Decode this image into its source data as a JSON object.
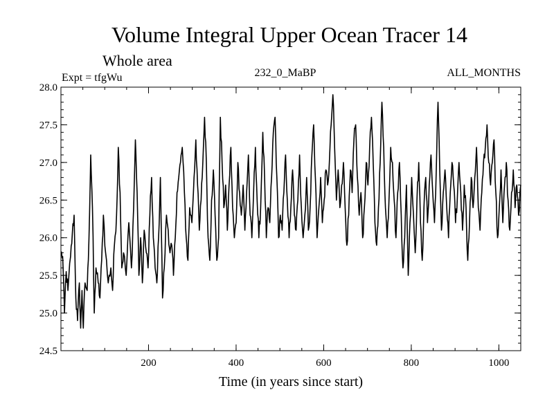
{
  "chart_data": {
    "type": "line",
    "title": "Volume Integral Upper Ocean Tracer 14",
    "subtitle": "Whole area",
    "annotations": {
      "left": "Expt = tfgWu",
      "center": "232_0_MaBP",
      "right": "ALL_MONTHS"
    },
    "xlabel": "Time (in years since start)",
    "ylabel": "",
    "xlim": [
      0,
      1050
    ],
    "ylim": [
      24.5,
      28.0
    ],
    "xticks": [
      200,
      400,
      600,
      800,
      1000
    ],
    "yticks": [
      24.5,
      25.0,
      25.5,
      26.0,
      26.5,
      27.0,
      27.5,
      28.0
    ],
    "ytick_labels": [
      "24.5",
      "25.0",
      "25.5",
      "26.0",
      "26.5",
      "27.0",
      "27.5",
      "28.0"
    ],
    "series": [
      {
        "name": "Tracer 14",
        "color": "#000000",
        "keypoints": [
          [
            0,
            25.8
          ],
          [
            4,
            25.75
          ],
          [
            8,
            25.0
          ],
          [
            12,
            25.55
          ],
          [
            16,
            25.3
          ],
          [
            22,
            25.75
          ],
          [
            26,
            26.05
          ],
          [
            30,
            26.3
          ],
          [
            34,
            25.2
          ],
          [
            38,
            24.9
          ],
          [
            42,
            25.4
          ],
          [
            45,
            24.8
          ],
          [
            48,
            25.3
          ],
          [
            51,
            24.8
          ],
          [
            55,
            25.4
          ],
          [
            60,
            25.3
          ],
          [
            64,
            26.0
          ],
          [
            68,
            27.1
          ],
          [
            72,
            26.4
          ],
          [
            76,
            25.0
          ],
          [
            80,
            25.6
          ],
          [
            85,
            25.4
          ],
          [
            89,
            25.2
          ],
          [
            93,
            25.7
          ],
          [
            97,
            26.3
          ],
          [
            102,
            25.8
          ],
          [
            108,
            25.4
          ],
          [
            114,
            25.6
          ],
          [
            118,
            25.3
          ],
          [
            122,
            25.9
          ],
          [
            127,
            26.3
          ],
          [
            131,
            27.2
          ],
          [
            135,
            26.6
          ],
          [
            139,
            25.6
          ],
          [
            143,
            25.8
          ],
          [
            149,
            25.5
          ],
          [
            155,
            26.2
          ],
          [
            161,
            25.6
          ],
          [
            166,
            26.4
          ],
          [
            170,
            27.3
          ],
          [
            174,
            26.6
          ],
          [
            178,
            25.5
          ],
          [
            182,
            26.0
          ],
          [
            186,
            25.4
          ],
          [
            190,
            26.1
          ],
          [
            195,
            25.8
          ],
          [
            199,
            25.6
          ],
          [
            203,
            26.3
          ],
          [
            207,
            26.8
          ],
          [
            211,
            26.0
          ],
          [
            215,
            25.6
          ],
          [
            219,
            25.4
          ],
          [
            223,
            26.0
          ],
          [
            227,
            26.8
          ],
          [
            232,
            25.2
          ],
          [
            236,
            25.6
          ],
          [
            241,
            26.3
          ],
          [
            245,
            26.1
          ],
          [
            249,
            25.8
          ],
          [
            253,
            25.9
          ],
          [
            257,
            25.5
          ],
          [
            261,
            26.0
          ],
          [
            265,
            26.6
          ],
          [
            269,
            26.8
          ],
          [
            273,
            27.0
          ],
          [
            277,
            27.2
          ],
          [
            282,
            26.6
          ],
          [
            286,
            26.0
          ],
          [
            290,
            25.7
          ],
          [
            294,
            26.4
          ],
          [
            299,
            26.2
          ],
          [
            304,
            26.8
          ],
          [
            308,
            27.3
          ],
          [
            312,
            26.7
          ],
          [
            316,
            26.1
          ],
          [
            320,
            26.5
          ],
          [
            324,
            27.0
          ],
          [
            328,
            27.6
          ],
          [
            332,
            27.0
          ],
          [
            336,
            26.0
          ],
          [
            340,
            25.7
          ],
          [
            344,
            26.5
          ],
          [
            348,
            26.9
          ],
          [
            352,
            26.3
          ],
          [
            356,
            25.7
          ],
          [
            360,
            26.0
          ],
          [
            364,
            27.6
          ],
          [
            368,
            27.0
          ],
          [
            372,
            26.4
          ],
          [
            376,
            26.7
          ],
          [
            380,
            26.1
          ],
          [
            384,
            26.7
          ],
          [
            388,
            27.2
          ],
          [
            392,
            26.4
          ],
          [
            396,
            26.0
          ],
          [
            400,
            26.2
          ],
          [
            404,
            27.0
          ],
          [
            408,
            26.6
          ],
          [
            412,
            26.3
          ],
          [
            416,
            26.7
          ],
          [
            420,
            26.1
          ],
          [
            424,
            26.6
          ],
          [
            428,
            27.1
          ],
          [
            432,
            26.3
          ],
          [
            436,
            26.0
          ],
          [
            440,
            26.6
          ],
          [
            444,
            27.2
          ],
          [
            448,
            26.5
          ],
          [
            452,
            26.0
          ],
          [
            456,
            26.4
          ],
          [
            461,
            27.4
          ],
          [
            465,
            26.8
          ],
          [
            469,
            26.0
          ],
          [
            473,
            26.4
          ],
          [
            477,
            26.2
          ],
          [
            481,
            26.8
          ],
          [
            485,
            27.4
          ],
          [
            489,
            27.6
          ],
          [
            493,
            26.8
          ],
          [
            497,
            26.0
          ],
          [
            501,
            26.3
          ],
          [
            505,
            26.1
          ],
          [
            509,
            26.6
          ],
          [
            513,
            27.1
          ],
          [
            517,
            26.5
          ],
          [
            521,
            26.0
          ],
          [
            525,
            26.4
          ],
          [
            529,
            26.9
          ],
          [
            533,
            26.3
          ],
          [
            537,
            26.1
          ],
          [
            541,
            26.5
          ],
          [
            545,
            27.1
          ],
          [
            549,
            26.4
          ],
          [
            553,
            26.0
          ],
          [
            557,
            26.3
          ],
          [
            561,
            26.8
          ],
          [
            565,
            26.1
          ],
          [
            569,
            26.4
          ],
          [
            573,
            27.1
          ],
          [
            577,
            27.5
          ],
          [
            581,
            26.8
          ],
          [
            585,
            26.0
          ],
          [
            589,
            26.4
          ],
          [
            593,
            26.8
          ],
          [
            597,
            26.2
          ],
          [
            601,
            26.5
          ],
          [
            605,
            26.9
          ],
          [
            609,
            26.7
          ],
          [
            613,
            27.0
          ],
          [
            617,
            27.5
          ],
          [
            621,
            27.9
          ],
          [
            625,
            27.2
          ],
          [
            629,
            26.5
          ],
          [
            633,
            26.9
          ],
          [
            637,
            26.4
          ],
          [
            641,
            26.7
          ],
          [
            645,
            27.0
          ],
          [
            649,
            26.4
          ],
          [
            653,
            25.9
          ],
          [
            657,
            26.3
          ],
          [
            661,
            26.9
          ],
          [
            665,
            26.6
          ],
          [
            669,
            27.3
          ],
          [
            673,
            27.5
          ],
          [
            677,
            26.8
          ],
          [
            681,
            26.3
          ],
          [
            685,
            26.6
          ],
          [
            689,
            26.0
          ],
          [
            693,
            26.4
          ],
          [
            697,
            27.0
          ],
          [
            701,
            26.7
          ],
          [
            705,
            27.2
          ],
          [
            709,
            27.6
          ],
          [
            713,
            27.0
          ],
          [
            717,
            26.2
          ],
          [
            721,
            25.9
          ],
          [
            725,
            26.4
          ],
          [
            729,
            27.0
          ],
          [
            733,
            27.8
          ],
          [
            737,
            27.2
          ],
          [
            741,
            26.4
          ],
          [
            745,
            26.0
          ],
          [
            749,
            26.5
          ],
          [
            753,
            27.2
          ],
          [
            757,
            27.0
          ],
          [
            761,
            26.5
          ],
          [
            765,
            26.0
          ],
          [
            769,
            26.6
          ],
          [
            773,
            27.0
          ],
          [
            777,
            26.3
          ],
          [
            781,
            25.6
          ],
          [
            785,
            26.0
          ],
          [
            789,
            26.7
          ],
          [
            793,
            25.5
          ],
          [
            797,
            26.2
          ],
          [
            801,
            26.8
          ],
          [
            805,
            26.3
          ],
          [
            809,
            25.8
          ],
          [
            813,
            26.5
          ],
          [
            817,
            27.0
          ],
          [
            821,
            26.2
          ],
          [
            825,
            25.7
          ],
          [
            829,
            26.4
          ],
          [
            833,
            26.8
          ],
          [
            837,
            26.2
          ],
          [
            841,
            26.7
          ],
          [
            845,
            27.1
          ],
          [
            849,
            26.6
          ],
          [
            853,
            26.2
          ],
          [
            857,
            26.9
          ],
          [
            861,
            27.8
          ],
          [
            865,
            26.9
          ],
          [
            869,
            26.1
          ],
          [
            873,
            26.6
          ],
          [
            877,
            26.9
          ],
          [
            881,
            26.4
          ],
          [
            885,
            26.0
          ],
          [
            889,
            26.6
          ],
          [
            893,
            27.0
          ],
          [
            897,
            26.7
          ],
          [
            901,
            26.2
          ],
          [
            905,
            26.5
          ],
          [
            909,
            27.0
          ],
          [
            913,
            26.6
          ],
          [
            917,
            26.1
          ],
          [
            921,
            26.7
          ],
          [
            925,
            26.4
          ],
          [
            929,
            25.7
          ],
          [
            933,
            26.2
          ],
          [
            937,
            26.8
          ],
          [
            941,
            26.4
          ],
          [
            945,
            26.8
          ],
          [
            949,
            27.2
          ],
          [
            953,
            26.4
          ],
          [
            957,
            26.1
          ],
          [
            961,
            26.6
          ],
          [
            965,
            27.0
          ],
          [
            969,
            27.2
          ],
          [
            973,
            27.5
          ],
          [
            977,
            27.0
          ],
          [
            981,
            26.7
          ],
          [
            985,
            27.0
          ],
          [
            989,
            27.3
          ],
          [
            993,
            26.6
          ],
          [
            997,
            26.0
          ],
          [
            1001,
            26.4
          ],
          [
            1005,
            26.9
          ],
          [
            1009,
            26.2
          ],
          [
            1013,
            26.7
          ],
          [
            1017,
            27.0
          ],
          [
            1021,
            26.5
          ],
          [
            1025,
            26.1
          ],
          [
            1029,
            26.6
          ],
          [
            1033,
            26.9
          ],
          [
            1037,
            26.4
          ],
          [
            1041,
            26.7
          ],
          [
            1045,
            26.3
          ],
          [
            1050,
            26.7
          ]
        ]
      }
    ]
  }
}
